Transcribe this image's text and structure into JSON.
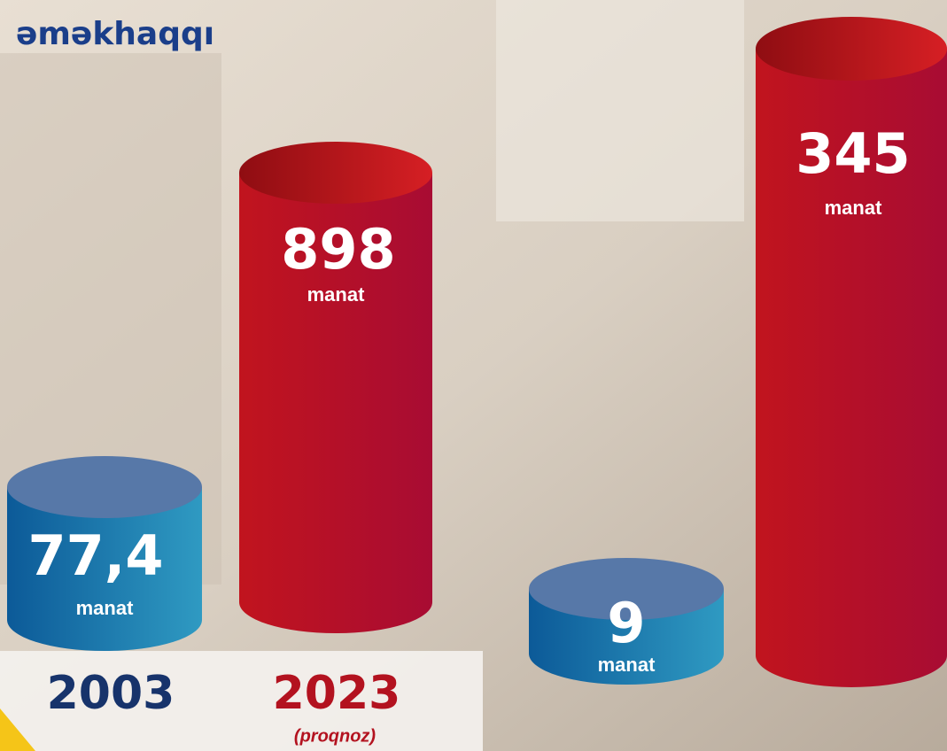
{
  "header": {
    "title": "əməkhaqqı"
  },
  "cylinders": [
    {
      "value": "77,4",
      "unit": "manat"
    },
    {
      "value": "898",
      "unit": "manat"
    },
    {
      "value": "9",
      "unit": "manat"
    },
    {
      "value": "345",
      "unit": "manat"
    }
  ],
  "years": [
    {
      "label": "2003"
    },
    {
      "label": "2023",
      "note": "(proqnoz)"
    }
  ]
}
